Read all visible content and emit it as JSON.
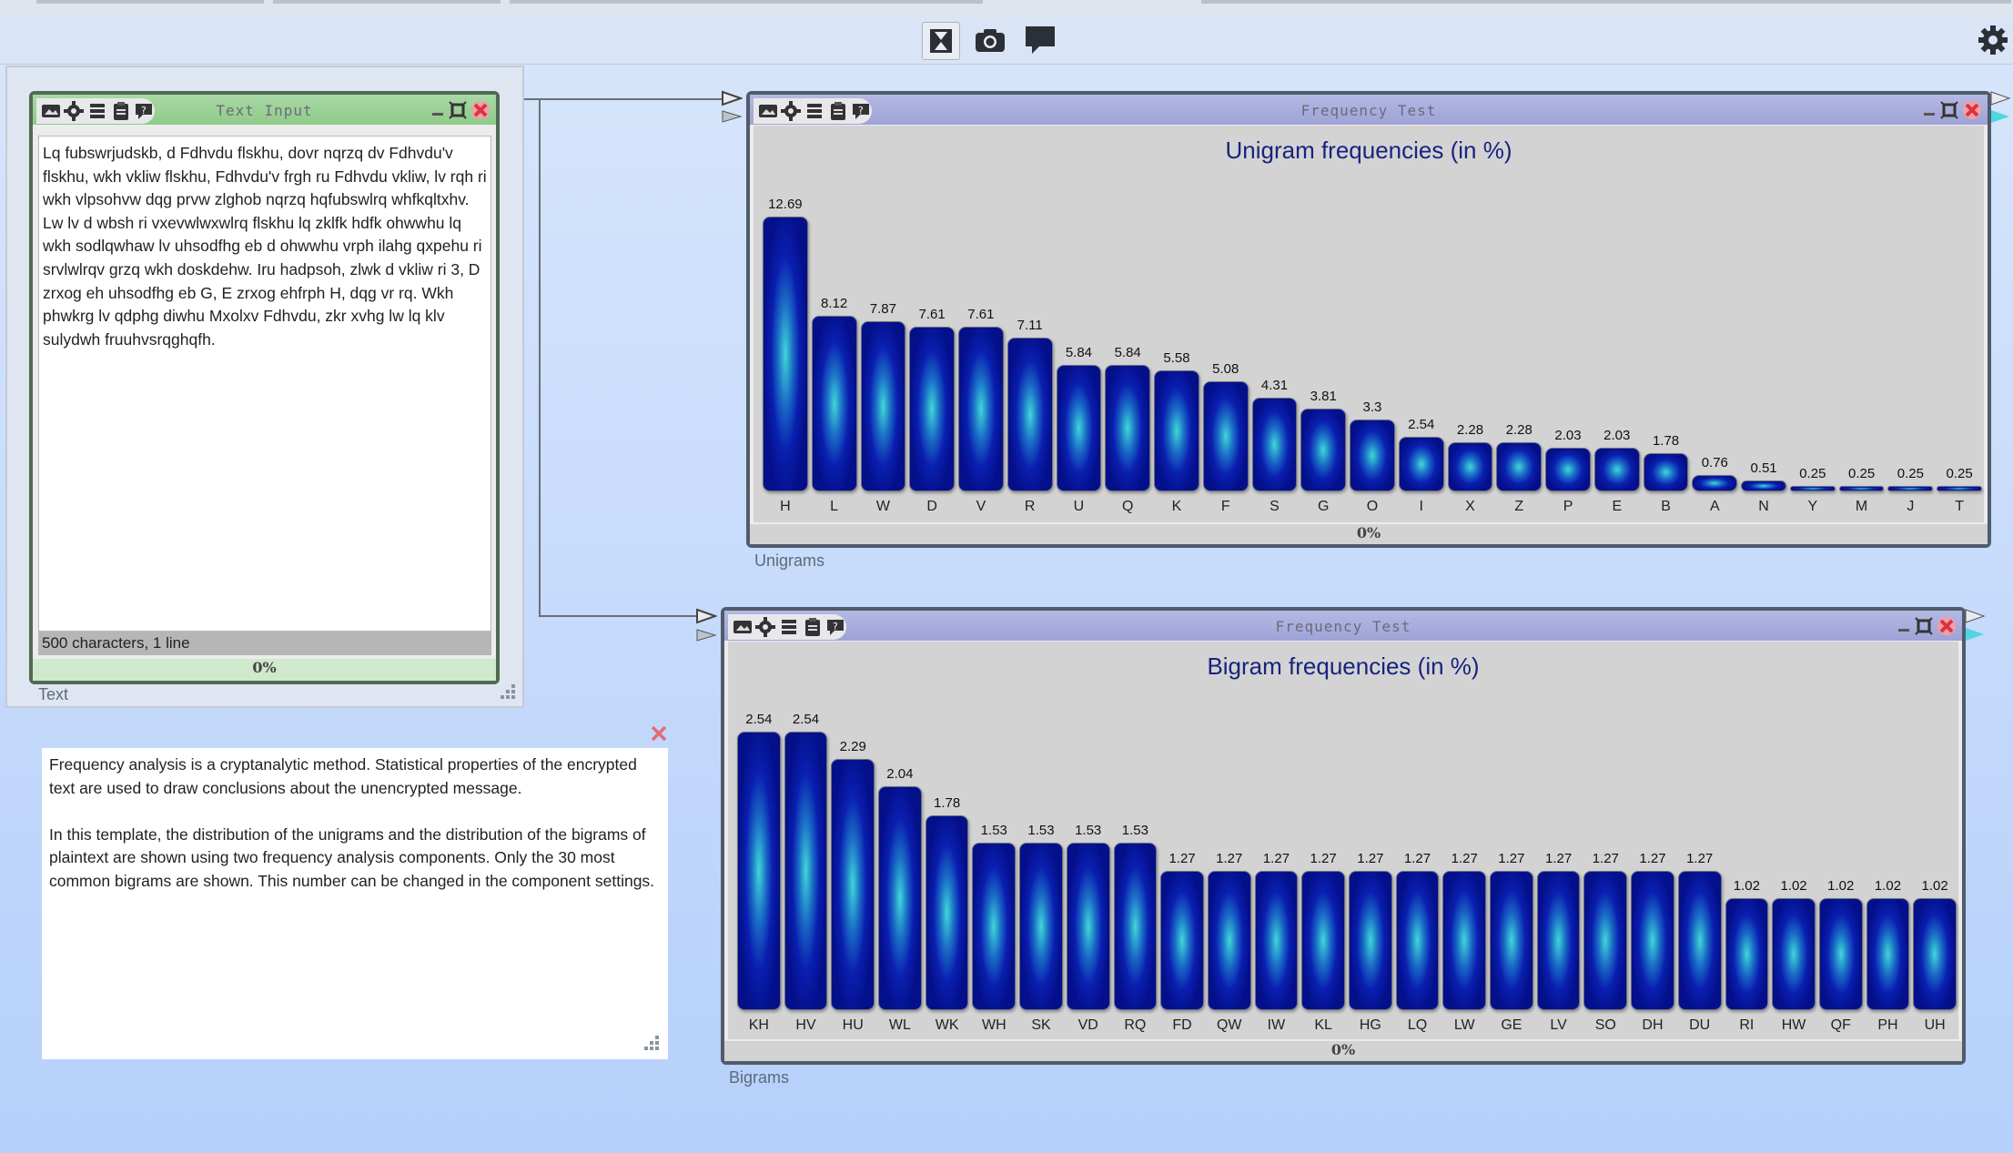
{
  "toolbar": {
    "buttons": [
      {
        "name": "play-stop-icon"
      },
      {
        "name": "camera-icon"
      },
      {
        "name": "comment-icon"
      }
    ],
    "settings_icon": "gear-icon"
  },
  "text_input": {
    "window_title": "Text Input",
    "content": "Lq fubswrjudskb, d Fdhvdu flskhu, dovr nqrzq dv Fdhvdu'v flskhu, wkh vkliw flskhu, Fdhvdu'v frgh ru Fdhvdu vkliw, lv rqh ri wkh vlpsohvw dqg prvw zlghob nqrzq hqfubswlrq whfkqltxhv. Lw lv d wbsh ri vxevwlwxwlrq flskhu lq zklfk hdfk ohwwhu lq wkh sodlqwhaw lv uhsodfhg eb d ohwwhu vrph ilahg qxpehu ri srvlwlrqv grzq wkh doskdehw. Iru hadpsoh, zlwk d vkliw ri 3, D zrxog eh uhsodfhg eb G, E zrxog ehfrph H, dqg vr rq. Wkh phwkrg lv qdphg diwhu Mxolxv Fdhvdu, zkr xvhg lw lq klv sulydwh fruuhvsrqghqfh.",
    "footer": "500 characters,  1 line",
    "progress": "0%",
    "label": "Text"
  },
  "info_text": "Frequency analysis is a cryptanalytic method. Statistical properties of the encrypted text are used to draw conclusions about the unencrypted message.\n\nIn this template, the distribution of the unigrams and the distribution of the bigrams of plaintext are shown using two frequency analysis components. Only the 30 most common bigrams are shown. This number can be changed in the component settings.",
  "unigram_window": {
    "window_title": "Frequency Test",
    "progress": "0%",
    "label": "Unigrams"
  },
  "bigram_window": {
    "window_title": "Frequency Test",
    "progress": "0%",
    "label": "Bigrams"
  },
  "chart_data": [
    {
      "type": "bar",
      "title": "Unigram frequencies (in %)",
      "categories": [
        "H",
        "L",
        "W",
        "D",
        "V",
        "R",
        "U",
        "Q",
        "K",
        "F",
        "S",
        "G",
        "O",
        "I",
        "X",
        "Z",
        "P",
        "E",
        "B",
        "A",
        "N",
        "Y",
        "M",
        "J",
        "T"
      ],
      "values": [
        12.69,
        8.12,
        7.87,
        7.61,
        7.61,
        7.11,
        5.84,
        5.84,
        5.58,
        5.08,
        4.31,
        3.81,
        3.3,
        2.54,
        2.28,
        2.28,
        2.03,
        2.03,
        1.78,
        0.76,
        0.51,
        0.25,
        0.25,
        0.25,
        0.25
      ],
      "ylim": [
        0,
        12.69
      ]
    },
    {
      "type": "bar",
      "title": "Bigram frequencies (in %)",
      "categories": [
        "KH",
        "HV",
        "HU",
        "WL",
        "WK",
        "WH",
        "SK",
        "VD",
        "RQ",
        "FD",
        "QW",
        "IW",
        "KL",
        "HG",
        "LQ",
        "LW",
        "GE",
        "LV",
        "SO",
        "DH",
        "DU",
        "RI",
        "HW",
        "QF",
        "PH",
        "UH"
      ],
      "values": [
        2.54,
        2.54,
        2.29,
        2.04,
        1.78,
        1.53,
        1.53,
        1.53,
        1.53,
        1.27,
        1.27,
        1.27,
        1.27,
        1.27,
        1.27,
        1.27,
        1.27,
        1.27,
        1.27,
        1.27,
        1.27,
        1.02,
        1.02,
        1.02,
        1.02,
        1.02
      ],
      "ylim": [
        0,
        2.54
      ]
    }
  ]
}
